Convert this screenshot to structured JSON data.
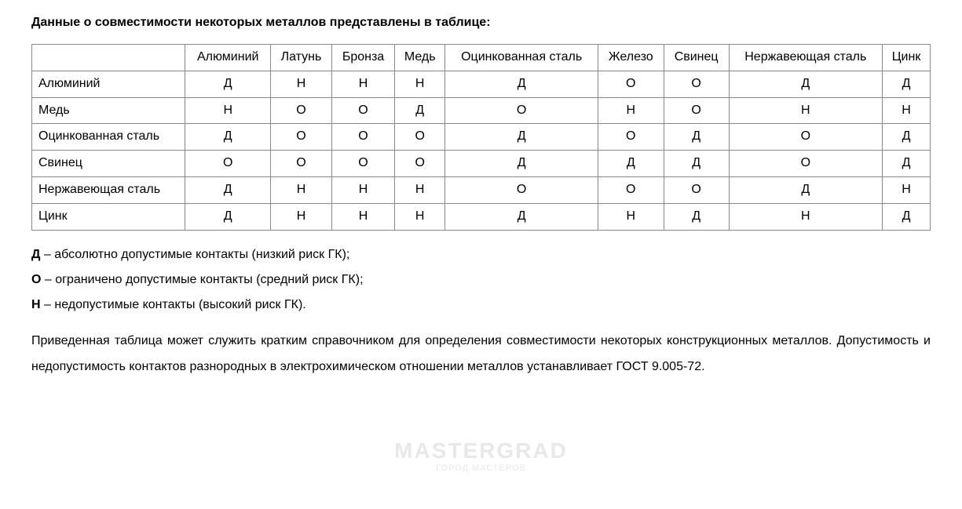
{
  "title": "Данные о совместимости некоторых металлов представлены в таблице:",
  "table": {
    "columns": [
      "",
      "Алюминий",
      "Латунь",
      "Бронза",
      "Медь",
      "Оцинкованная сталь",
      "Железо",
      "Свинец",
      "Нержавеющая сталь",
      "Цинк"
    ],
    "rows": [
      [
        "Алюминий",
        "Д",
        "Н",
        "Н",
        "Н",
        "Д",
        "О",
        "О",
        "Д",
        "Д"
      ],
      [
        "Медь",
        "Н",
        "О",
        "О",
        "Д",
        "О",
        "Н",
        "О",
        "Н",
        "Н"
      ],
      [
        "Оцинкованная сталь",
        "Д",
        "О",
        "О",
        "О",
        "Д",
        "О",
        "Д",
        "О",
        "Д"
      ],
      [
        "Свинец",
        "О",
        "О",
        "О",
        "О",
        "Д",
        "Д",
        "Д",
        "О",
        "Д"
      ],
      [
        "Нержавеющая сталь",
        "Д",
        "Н",
        "Н",
        "Н",
        "О",
        "О",
        "О",
        "Д",
        "Н"
      ],
      [
        "Цинк",
        "Д",
        "Н",
        "Н",
        "Н",
        "Д",
        "Н",
        "Д",
        "Н",
        "Д"
      ]
    ],
    "border_color": "#888888",
    "cell_padding": "6px 8px",
    "font_size": 16
  },
  "legend": [
    {
      "symbol": "Д",
      "text": " – абсолютно допустимые контакты (низкий риск ГК);"
    },
    {
      "symbol": "О",
      "text": " – ограничено допустимые контакты (средний риск ГК);"
    },
    {
      "symbol": "Н",
      "text": " – недопустимые контакты (высокий риск ГК)."
    }
  ],
  "paragraph": "Приведенная таблица может служить кратким справочником для определения совместимости некоторых конструкционных металлов. Допустимость и недопустимость контактов разнородных в электрохимическом отношении металлов устанавливает ГОСТ 9.005-72.",
  "watermark": {
    "main": "MASTERGRAD",
    "sub": "ГОРОД МАСТЕРОВ"
  },
  "colors": {
    "text": "#000000",
    "background": "#ffffff",
    "watermark": "#d9d9d9"
  }
}
